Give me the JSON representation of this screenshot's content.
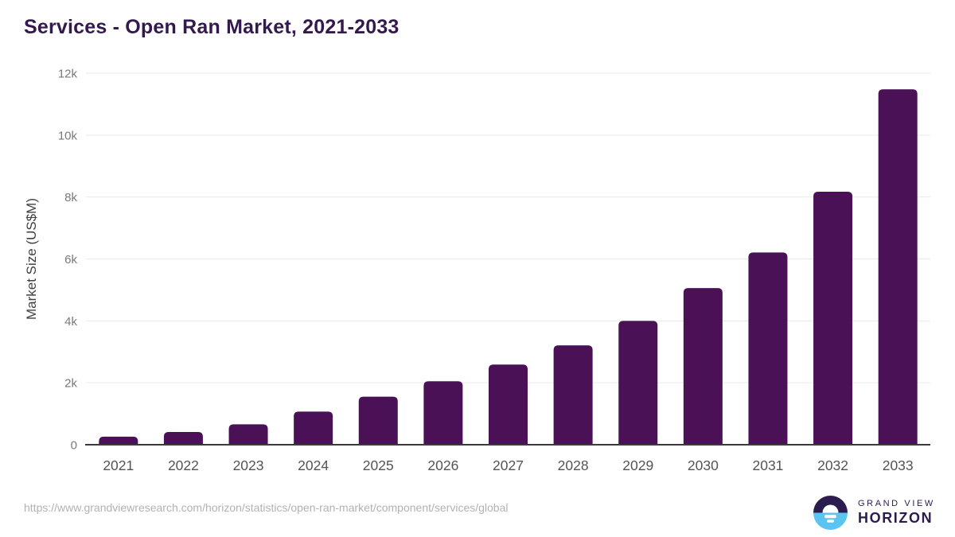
{
  "title": "Services - Open Ran Market, 2021-2033",
  "footer": {
    "source_url": "https://www.grandviewresearch.com/horizon/statistics/open-ran-market/component/services/global",
    "logo": {
      "line1": "GRAND VIEW",
      "line2": "HORIZON"
    }
  },
  "colors": {
    "bar": "#4a1157",
    "title": "#33194d",
    "axis_label": "#414042",
    "tick_label": "#78797b",
    "year_label": "#545456",
    "gridline": "#e9e9eb",
    "baseline": "#3a3a3a",
    "url_text": "#b1b2b4",
    "logo_dark": "#2b1b4e",
    "logo_blue": "#5bc4f1"
  },
  "chart_data": {
    "type": "bar",
    "title": "Services - Open Ran Market, 2021-2033",
    "categories": [
      "2021",
      "2022",
      "2023",
      "2024",
      "2025",
      "2026",
      "2027",
      "2028",
      "2029",
      "2030",
      "2031",
      "2032",
      "2033"
    ],
    "values": [
      260,
      410,
      660,
      1070,
      1550,
      2050,
      2590,
      3210,
      4000,
      5060,
      6210,
      8170,
      11480
    ],
    "xlabel": "",
    "ylabel": "Market Size (US$M)",
    "ylim": [
      0,
      12000
    ],
    "yticks": {
      "values": [
        0,
        2000,
        4000,
        6000,
        8000,
        10000,
        12000
      ],
      "labels": [
        "0",
        "2k",
        "4k",
        "6k",
        "8k",
        "10k",
        "12k"
      ]
    },
    "grid": true,
    "legend_position": "none",
    "bar_corner_radius": 6
  }
}
